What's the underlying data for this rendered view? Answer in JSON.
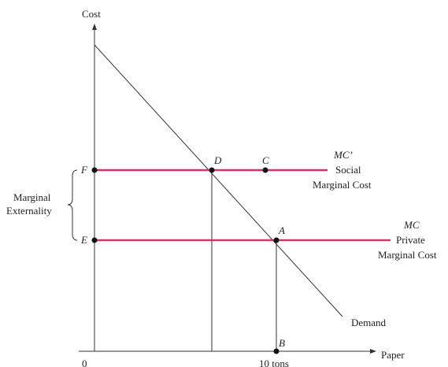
{
  "axes": {
    "y_label": "Cost",
    "x_label": "Paper",
    "origin_label": "0",
    "x_tick_label": "10 tons"
  },
  "lines": {
    "demand_label": "Demand",
    "social_mc_symbol": "MC’",
    "social_mc_label_1": "Social",
    "social_mc_label_2": "Marginal Cost",
    "private_mc_symbol": "MC",
    "private_mc_label_1": "Private",
    "private_mc_label_2": "Marginal Cost"
  },
  "points": {
    "A": "A",
    "B": "B",
    "C": "C",
    "D": "D",
    "E": "E",
    "F": "F"
  },
  "brace": {
    "label_1": "Marginal",
    "label_2": "Externality"
  },
  "colors": {
    "mc_line": "#d8326a",
    "axis": "#333333",
    "dot": "#111111"
  }
}
